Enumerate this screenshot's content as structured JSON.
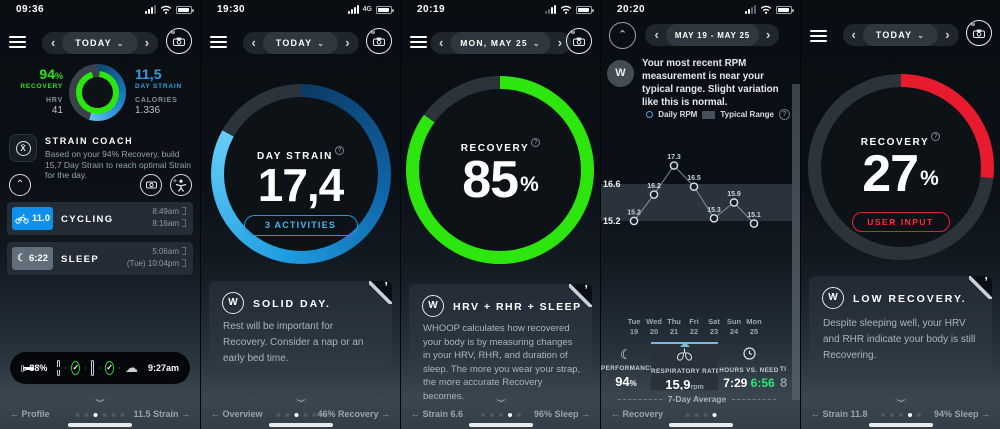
{
  "app_name": "WHOOP",
  "colors": {
    "green": "#2ce60e",
    "blue": "#2e9fe6",
    "light_blue": "#63cdf8",
    "red": "#e81b2e",
    "mint": "#2ee673",
    "accent_tab": "#7fb8dd"
  },
  "icons": {
    "menu": "hamburger-icon",
    "camera": "camera-icon",
    "moon": "☾",
    "cloud": "☁",
    "check": "✓",
    "chevron_left": "‹",
    "chevron_right": "›",
    "chevron_down": "⌄",
    "chevron_up": "⌃",
    "comma_logo": "’",
    "info": "?"
  },
  "panels": [
    {
      "status": {
        "time": "09:36"
      },
      "header": {
        "date_label": "TODAY"
      },
      "metrics": {
        "recovery_value": "94",
        "recovery_unit": "%",
        "recovery_label": "RECOVERY",
        "hrv_label": "HRV",
        "hrv_value": "41",
        "strain_value": "11,5",
        "strain_label": "DAY STRAIN",
        "calories_label": "CALORIES",
        "calories_value": "1.336",
        "logo": "W"
      },
      "strain_coach": {
        "title": "STRAIN COACH",
        "body": "Based on your 94% Recovery, build 15,7 Day Strain to reach optimal Strain for the day."
      },
      "activities": [
        {
          "badge": "11.0",
          "name": "CYCLING",
          "time_top": "8:49am",
          "time_bottom": "8:16am"
        },
        {
          "badge": "6:22",
          "name": "SLEEP",
          "time_top": "5:06am",
          "time_bottom": "(Tue) 10:04pm"
        }
      ],
      "device_widget": {
        "battery": "88%",
        "synced_time": "9:27am"
      },
      "pager": {
        "left": "← Profile",
        "right": "11.5 Strain →",
        "dots": {
          "count": 6,
          "active": 3
        }
      }
    },
    {
      "status": {
        "time": "19:30",
        "network": "4G"
      },
      "header": {
        "date_label": "TODAY"
      },
      "gauge": {
        "label": "DAY STRAIN",
        "value": "17,4",
        "button": "3 ACTIVITIES"
      },
      "card": {
        "title": "SOLID DAY.",
        "logo": "W",
        "body": "Rest will be important for Recovery. Consider a nap or an early bed time."
      },
      "pager": {
        "left": "← Overview",
        "right": "46% Recovery →",
        "dots": {
          "count": 6,
          "active": 3
        }
      }
    },
    {
      "status": {
        "time": "20:19"
      },
      "header": {
        "date_label": "MON, MAY 25"
      },
      "gauge": {
        "label": "RECOVERY",
        "value": "85",
        "unit": "%"
      },
      "card": {
        "title": "HRV + RHR + SLEEP",
        "logo": "W",
        "body": "WHOOP calculates how recovered your body is by measuring changes in your HRV, RHR, and duration of sleep. The more you wear your strap, the more accurate Recovery becomes."
      },
      "pager": {
        "left": "← Strain 6.6",
        "right": "96% Sleep →",
        "dots": {
          "count": 5,
          "active": 4
        }
      }
    },
    {
      "status": {
        "time": "20:20"
      },
      "header": {
        "date_label": "MAY 19 - MAY 25"
      },
      "avatar": "W",
      "insight": "Your most recent RPM measurement is near your typical range. Slight variation like this is normal.",
      "legend": {
        "daily": "Daily RPM",
        "range": "Typical Range"
      },
      "tabs": [
        {
          "label": "PERFORMANCE",
          "value": "94",
          "unit": "%",
          "icon": "moon-icon",
          "selected": false
        },
        {
          "label": "RESPIRATORY RATE",
          "value": "15,9",
          "unit": "rpm",
          "icon": "lungs-icon",
          "selected": true
        },
        {
          "label": "HOURS VS. NEED",
          "value": "7:29",
          "value2": "6:56",
          "icon": "clock-icon",
          "selected": false
        },
        {
          "label": "TI",
          "value": "8",
          "selected": false
        }
      ],
      "average_label": "7-Day Average",
      "pager": {
        "left": "← Recovery",
        "right": "",
        "dots": {
          "count": 4,
          "active": 4
        }
      }
    },
    {
      "header": {
        "date_label": "TODAY"
      },
      "gauge": {
        "label": "RECOVERY",
        "value": "27",
        "unit": "%",
        "button": "USER INPUT"
      },
      "card": {
        "title": "LOW RECOVERY.",
        "logo": "W",
        "body": "Despite sleeping well, your HRV and RHR indicate your body is still Recovering."
      },
      "pager": {
        "left": "← Strain 11.8",
        "right": "94% Sleep →",
        "dots": {
          "count": 5,
          "active": 4
        }
      }
    }
  ],
  "chart_data": {
    "type": "line",
    "title": "Respiratory Rate (RPM), May 19 - May 25",
    "x": [
      "Tue 19",
      "Wed 20",
      "Thu 21",
      "Fri 22",
      "Sat 23",
      "Sun 24",
      "Mon 25"
    ],
    "values": [
      15.2,
      16.2,
      17.3,
      16.5,
      15.3,
      15.9,
      15.1
    ],
    "point_labels": [
      "15.2",
      "16.2",
      "17.3",
      "16.5",
      "15.3",
      "15.9",
      "15.1"
    ],
    "y_ticks": [
      "16.6",
      "15.2"
    ],
    "typical_range": [
      15.2,
      16.6
    ],
    "series_name": "Daily RPM",
    "band_name": "Typical Range",
    "ylim": [
      14.6,
      17.9
    ],
    "grid": false,
    "legend_position": "top-right"
  }
}
